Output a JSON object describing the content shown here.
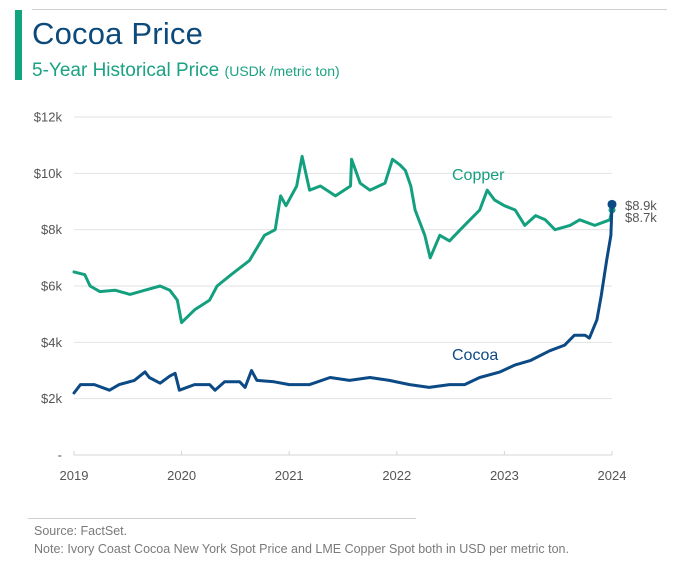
{
  "header": {
    "title": "Cocoa Price",
    "subtitle": "5-Year Historical Price",
    "unit": "(USDk /metric ton)"
  },
  "colors": {
    "accent": "#12a37f",
    "title": "#0c4a7c",
    "copper": "#14a07f",
    "cocoa": "#0c4a85",
    "grid": "#e2e2e2"
  },
  "chart_data": {
    "type": "line",
    "title": "Cocoa Price",
    "subtitle": "5-Year Historical Price (USDk /metric ton)",
    "xlabel": "",
    "ylabel": "",
    "xlim": [
      2019,
      2024
    ],
    "ylim": [
      0,
      12
    ],
    "grid": true,
    "x_ticks": [
      2019,
      2020,
      2021,
      2022,
      2023,
      2024
    ],
    "x_tick_labels": [
      "2019",
      "2020",
      "2021",
      "2022",
      "2023",
      "2024"
    ],
    "y_ticks": [
      0,
      2,
      4,
      6,
      8,
      10,
      12
    ],
    "y_tick_labels": [
      "-",
      "$2k",
      "$4k",
      "$6k",
      "$8k",
      "$10k",
      "$12k"
    ],
    "series": [
      {
        "name": "Copper",
        "color": "#14a07f",
        "end_label": "$8.7k",
        "x": [
          2019.0,
          2019.1,
          2019.15,
          2019.24,
          2019.38,
          2019.52,
          2019.66,
          2019.8,
          2019.89,
          2019.96,
          2020.0,
          2020.12,
          2020.26,
          2020.33,
          2020.46,
          2020.63,
          2020.77,
          2020.87,
          2020.92,
          2020.97,
          2021.07,
          2021.12,
          2021.19,
          2021.29,
          2021.43,
          2021.57,
          2021.58,
          2021.66,
          2021.75,
          2021.89,
          2021.96,
          2022.03,
          2022.08,
          2022.13,
          2022.17,
          2022.26,
          2022.31,
          2022.4,
          2022.49,
          2022.59,
          2022.68,
          2022.77,
          2022.84,
          2022.91,
          2023.0,
          2023.1,
          2023.19,
          2023.29,
          2023.38,
          2023.47,
          2023.61,
          2023.7,
          2023.84,
          2023.98,
          2024.0
        ],
        "values": [
          6.5,
          6.4,
          6.0,
          5.8,
          5.85,
          5.7,
          5.85,
          6.0,
          5.85,
          5.5,
          4.7,
          5.15,
          5.5,
          6.0,
          6.4,
          6.9,
          7.8,
          8.0,
          9.2,
          8.85,
          9.55,
          10.6,
          9.4,
          9.55,
          9.2,
          9.55,
          10.5,
          9.65,
          9.4,
          9.65,
          10.5,
          10.3,
          10.1,
          9.55,
          8.7,
          7.8,
          7.0,
          7.8,
          7.6,
          8.0,
          8.35,
          8.7,
          9.4,
          9.05,
          8.85,
          8.7,
          8.15,
          8.5,
          8.35,
          8.0,
          8.15,
          8.35,
          8.15,
          8.35,
          8.7
        ]
      },
      {
        "name": "Cocoa",
        "color": "#0c4a85",
        "end_label": "$8.9k",
        "x": [
          2019.0,
          2019.06,
          2019.19,
          2019.33,
          2019.42,
          2019.56,
          2019.66,
          2019.7,
          2019.8,
          2019.89,
          2019.94,
          2019.98,
          2020.12,
          2020.26,
          2020.31,
          2020.4,
          2020.54,
          2020.59,
          2020.65,
          2020.7,
          2020.86,
          2021.0,
          2021.1,
          2021.19,
          2021.38,
          2021.56,
          2021.75,
          2021.93,
          2022.12,
          2022.3,
          2022.49,
          2022.63,
          2022.77,
          2022.96,
          2023.1,
          2023.24,
          2023.42,
          2023.56,
          2023.65,
          2023.75,
          2023.79,
          2023.86,
          2023.9,
          2023.95,
          2023.99,
          2024.0
        ],
        "values": [
          2.2,
          2.5,
          2.5,
          2.3,
          2.5,
          2.65,
          2.95,
          2.75,
          2.55,
          2.8,
          2.9,
          2.3,
          2.5,
          2.5,
          2.3,
          2.6,
          2.6,
          2.4,
          3.0,
          2.65,
          2.6,
          2.5,
          2.5,
          2.5,
          2.75,
          2.65,
          2.75,
          2.65,
          2.5,
          2.4,
          2.5,
          2.5,
          2.75,
          2.95,
          3.2,
          3.35,
          3.7,
          3.9,
          4.25,
          4.25,
          4.15,
          4.8,
          5.65,
          6.9,
          7.8,
          8.9
        ]
      }
    ],
    "annotations": [
      "Copper",
      "Cocoa",
      "$8.9k",
      "$8.7k"
    ]
  },
  "footer": {
    "source": "Source: FactSet.",
    "note": "Note: Ivory Coast Cocoa New York Spot Price and LME Copper Spot both in USD per metric ton."
  }
}
